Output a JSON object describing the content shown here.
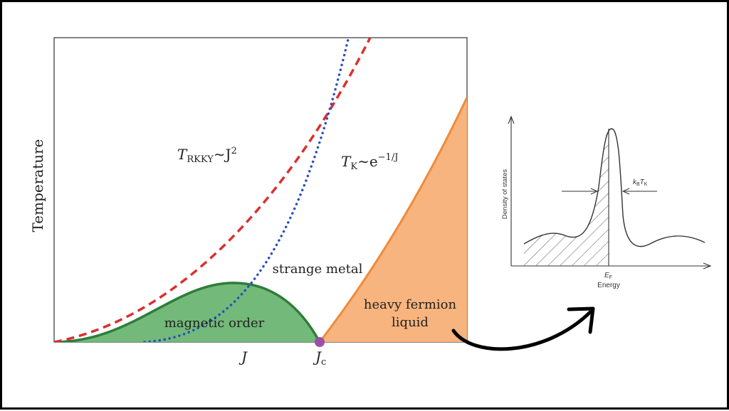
{
  "main_plot": {
    "y_axis_label": "Temperature",
    "x_tick_J": "J",
    "x_tick_Jc": "J",
    "x_tick_Jc_sub": "c",
    "t_rkky": {
      "T": "T",
      "sub": "RKKY",
      "rest": "∼J",
      "sup": "2"
    },
    "t_k": {
      "T": "T",
      "sub": "K",
      "rest": "∼e",
      "sup": "−1/J"
    },
    "region_magnetic_order": "magnetic order",
    "region_strange_metal": "strange metal",
    "region_heavy_fermion_line1": "heavy fermion",
    "region_heavy_fermion_line2": "liquid",
    "colors": {
      "magnetic_fill": "#72b97a",
      "magnetic_edge": "#2e7d3a",
      "heavy_fill": "#f8b47e",
      "heavy_edge": "#f08a3a",
      "rkky_curve": "#d93030",
      "kondo_curve": "#2a4fb8",
      "critical_point": "#9b4fa6"
    }
  },
  "inset": {
    "y_axis_label": "Density of states",
    "x_axis_label": "Energy",
    "ef_label": "E",
    "ef_sub": "F",
    "kbtk_k": "k",
    "kbtk_b": "B",
    "kbtk_t": "T",
    "kbtk_sub": "K"
  }
}
